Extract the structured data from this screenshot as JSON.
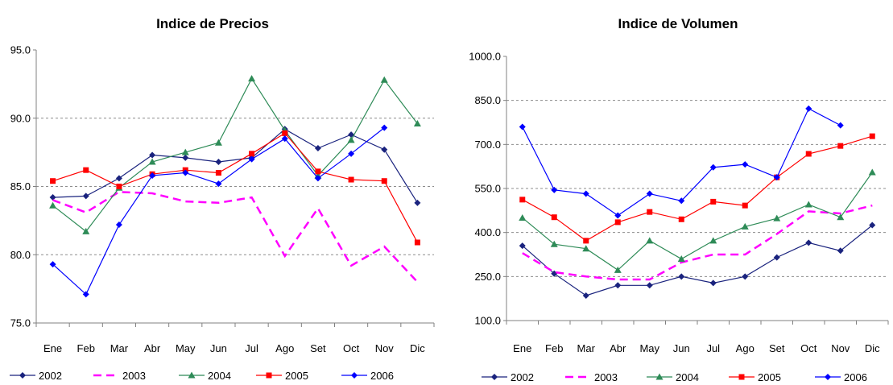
{
  "chart_data": [
    {
      "type": "line",
      "title": "Indice de Precios",
      "xlabel": "",
      "ylabel": "",
      "categories": [
        "Ene",
        "Feb",
        "Mar",
        "Abr",
        "May",
        "Jun",
        "Jul",
        "Ago",
        "Set",
        "Oct",
        "Nov",
        "Dic"
      ],
      "ylim": [
        75,
        95
      ],
      "yticks": [
        "75.0",
        "80.0",
        "85.0",
        "90.0",
        "95.0"
      ],
      "grid": true,
      "legend": "bottom",
      "series": [
        {
          "name": "2002",
          "color": "#1a237e",
          "marker": "diamond",
          "dash": false,
          "values": [
            84.2,
            84.3,
            85.6,
            87.3,
            87.1,
            86.8,
            87.1,
            89.2,
            87.8,
            88.8,
            87.7,
            83.8
          ]
        },
        {
          "name": "2003",
          "color": "#ff00ff",
          "marker": "none",
          "dash": true,
          "values": [
            84.0,
            83.1,
            84.6,
            84.5,
            83.9,
            83.8,
            84.2,
            79.9,
            83.4,
            79.2,
            80.6,
            78.0
          ]
        },
        {
          "name": "2004",
          "color": "#2e8b57",
          "marker": "triangle",
          "dash": false,
          "values": [
            83.6,
            81.7,
            84.9,
            86.8,
            87.5,
            88.2,
            92.9,
            89.1,
            85.8,
            88.4,
            92.8,
            89.6
          ]
        },
        {
          "name": "2005",
          "color": "#ff0000",
          "marker": "square",
          "dash": false,
          "values": [
            85.4,
            86.2,
            85.0,
            85.9,
            86.2,
            86.0,
            87.4,
            88.9,
            86.1,
            85.5,
            85.4,
            80.9
          ]
        },
        {
          "name": "2006",
          "color": "#0000ff",
          "marker": "diamond",
          "dash": false,
          "values": [
            79.3,
            77.1,
            82.2,
            85.8,
            86.0,
            85.2,
            87.0,
            88.5,
            85.6,
            87.4,
            89.3,
            null
          ]
        }
      ]
    },
    {
      "type": "line",
      "title": "Indice de Volumen",
      "xlabel": "",
      "ylabel": "",
      "categories": [
        "Ene",
        "Feb",
        "Mar",
        "Abr",
        "May",
        "Jun",
        "Jul",
        "Ago",
        "Set",
        "Oct",
        "Nov",
        "Dic"
      ],
      "ylim": [
        100,
        1000
      ],
      "yticks": [
        "100.0",
        "250.0",
        "400.0",
        "550.0",
        "700.0",
        "850.0",
        "1000.0"
      ],
      "grid": true,
      "legend": "bottom",
      "series": [
        {
          "name": "2002",
          "color": "#1a237e",
          "marker": "diamond",
          "dash": false,
          "values": [
            355,
            260,
            185,
            220,
            220,
            250,
            228,
            250,
            315,
            365,
            338,
            425
          ]
        },
        {
          "name": "2003",
          "color": "#ff00ff",
          "marker": "none",
          "dash": true,
          "values": [
            330,
            265,
            250,
            240,
            240,
            298,
            325,
            325,
            395,
            472,
            465,
            492
          ]
        },
        {
          "name": "2004",
          "color": "#2e8b57",
          "marker": "triangle",
          "dash": false,
          "values": [
            450,
            360,
            345,
            272,
            372,
            310,
            372,
            420,
            448,
            495,
            452,
            605
          ]
        },
        {
          "name": "2005",
          "color": "#ff0000",
          "marker": "square",
          "dash": false,
          "values": [
            512,
            452,
            372,
            435,
            470,
            445,
            505,
            492,
            588,
            668,
            695,
            728
          ]
        },
        {
          "name": "2006",
          "color": "#0000ff",
          "marker": "diamond",
          "dash": false,
          "values": [
            760,
            545,
            532,
            458,
            532,
            508,
            622,
            632,
            588,
            822,
            765,
            null
          ]
        }
      ]
    }
  ]
}
